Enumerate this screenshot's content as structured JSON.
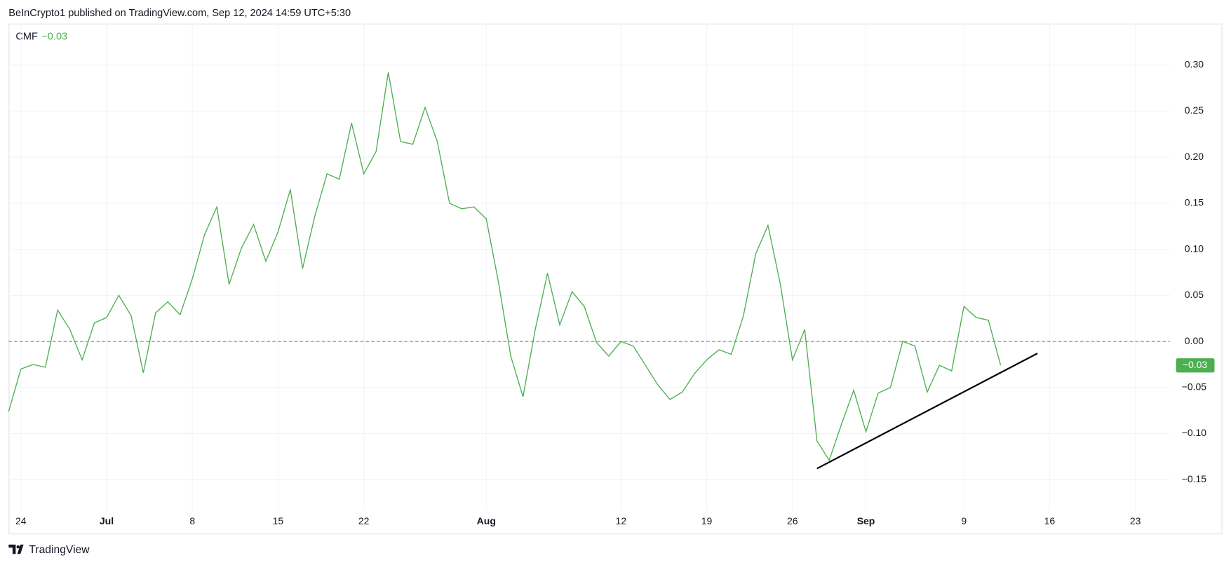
{
  "header": "BeInCrypto1 published on TradingView.com, Sep 12, 2024 14:59 UTC+5:30",
  "footer": "TradingView",
  "chart_data": {
    "type": "line",
    "title": "CMF",
    "legend_value": "−0.03",
    "last_value_label": "−0.03",
    "color": "#4caf50",
    "categories": [
      null,
      "24",
      null,
      null,
      null,
      null,
      null,
      null,
      "Jul",
      null,
      null,
      null,
      null,
      null,
      null,
      "8",
      null,
      null,
      null,
      null,
      null,
      null,
      "15",
      null,
      null,
      null,
      null,
      null,
      null,
      "22",
      null,
      null,
      null,
      null,
      null,
      null,
      null,
      null,
      null,
      "Aug",
      null,
      null,
      null,
      null,
      null,
      null,
      null,
      null,
      null,
      null,
      "12",
      null,
      null,
      null,
      null,
      null,
      null,
      "19",
      null,
      null,
      null,
      null,
      null,
      null,
      "26",
      null,
      null,
      null,
      null,
      null,
      "Sep",
      null,
      null,
      null,
      null,
      null,
      null,
      null,
      "9",
      null,
      null,
      null,
      null,
      null,
      null,
      "16",
      null,
      null,
      null,
      null,
      null,
      null,
      "23",
      null,
      null,
      null
    ],
    "values": [
      -0.076,
      -0.03,
      -0.025,
      -0.028,
      0.034,
      0.013,
      -0.02,
      0.02,
      0.026,
      0.05,
      0.028,
      -0.034,
      0.031,
      0.043,
      0.029,
      0.068,
      0.116,
      0.146,
      0.062,
      0.101,
      0.127,
      0.087,
      0.119,
      0.165,
      0.079,
      0.136,
      0.182,
      0.176,
      0.237,
      0.182,
      0.206,
      0.292,
      0.217,
      0.214,
      0.254,
      0.217,
      0.15,
      0.144,
      0.146,
      0.133,
      0.064,
      -0.016,
      -0.06,
      0.013,
      0.074,
      0.018,
      0.054,
      0.038,
      -0.001,
      -0.016,
      0.0,
      -0.005,
      -0.026,
      -0.047,
      -0.063,
      -0.055,
      -0.035,
      -0.02,
      -0.009,
      -0.014,
      0.028,
      0.095,
      0.126,
      0.063,
      -0.02,
      0.013,
      -0.108,
      -0.129,
      -0.09,
      -0.053,
      -0.098,
      -0.056,
      -0.05,
      0.0,
      -0.005,
      -0.055,
      -0.026,
      -0.032,
      0.038,
      0.026,
      0.023,
      -0.026,
      null,
      null,
      null,
      null,
      null,
      null,
      null,
      null,
      null,
      null,
      null,
      null,
      null,
      null
    ],
    "ylim": [
      -0.183,
      0.345
    ],
    "yticks": [
      {
        "value": 0.3,
        "label": "0.30"
      },
      {
        "value": 0.25,
        "label": "0.25"
      },
      {
        "value": 0.2,
        "label": "0.20"
      },
      {
        "value": 0.15,
        "label": "0.15"
      },
      {
        "value": 0.1,
        "label": "0.10"
      },
      {
        "value": 0.05,
        "label": "0.05"
      },
      {
        "value": 0,
        "label": "0.00"
      },
      {
        "value": -0.05,
        "label": "−0.05"
      },
      {
        "value": -0.1,
        "label": "−0.10"
      },
      {
        "value": -0.15,
        "label": "−0.15"
      }
    ],
    "grid": true,
    "zero_line": 0,
    "trend_line": {
      "from": {
        "index": 66,
        "value": -0.138
      },
      "to": {
        "index": 84,
        "value": -0.013
      },
      "color": "#000000"
    }
  }
}
